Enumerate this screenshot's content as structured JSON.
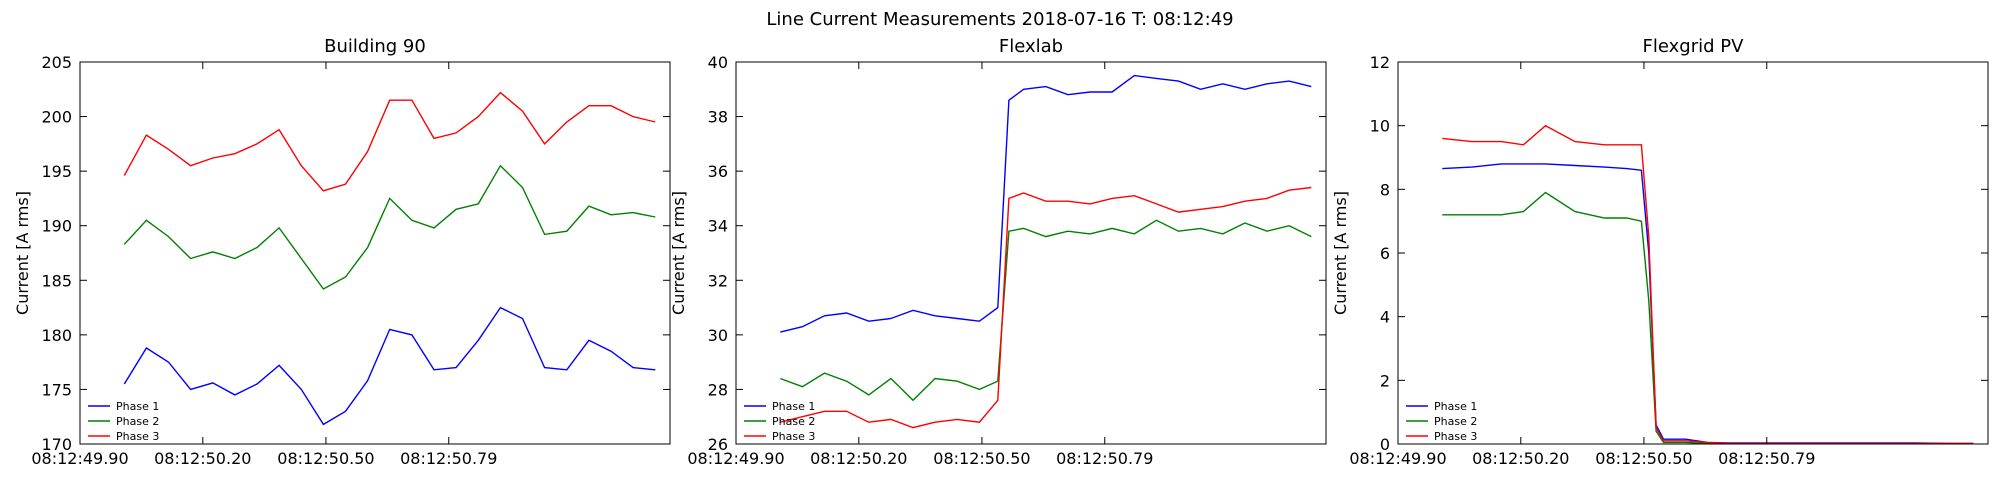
{
  "suptitle": "Line Current Measurements 2018-07-16 T: 08:12:49",
  "colors": {
    "phase1": "#0000ff",
    "phase2": "#008000",
    "phase3": "#ff0000"
  },
  "chart_data": [
    {
      "type": "line",
      "title": "Building 90",
      "xlabel": "",
      "ylabel": "Current [A rms]",
      "xlim": [
        0,
        1.6
      ],
      "ylim": [
        170,
        205
      ],
      "yticks": [
        170,
        175,
        180,
        185,
        190,
        195,
        200,
        205
      ],
      "xtick_positions": [
        0.0,
        0.333,
        0.667,
        1.0
      ],
      "xtick_labels": [
        "08:12:49.90",
        "08:12:50.20",
        "08:12:50.50",
        "08:12:50.79"
      ],
      "grid": false,
      "legend": "lower-left",
      "x": [
        0.12,
        0.18,
        0.24,
        0.3,
        0.36,
        0.42,
        0.48,
        0.54,
        0.6,
        0.66,
        0.72,
        0.78,
        0.84,
        0.9,
        0.96,
        1.02,
        1.08,
        1.14,
        1.2,
        1.26,
        1.32,
        1.38,
        1.44,
        1.5,
        1.56
      ],
      "series": [
        {
          "name": "Phase 1",
          "color": "phase1",
          "values": [
            175.5,
            178.8,
            177.5,
            175.0,
            175.6,
            174.5,
            175.5,
            177.2,
            175.0,
            171.8,
            173.0,
            175.8,
            180.5,
            180.0,
            176.8,
            177.0,
            179.5,
            182.5,
            181.5,
            177.0,
            176.8,
            179.5,
            178.5,
            177.0,
            176.8
          ]
        },
        {
          "name": "Phase 2",
          "color": "phase2",
          "values": [
            188.3,
            190.5,
            189.0,
            187.0,
            187.6,
            187.0,
            188.0,
            189.8,
            187.0,
            184.2,
            185.3,
            188.0,
            192.5,
            190.5,
            189.8,
            191.5,
            192.0,
            195.5,
            193.5,
            189.2,
            189.5,
            191.8,
            191.0,
            191.2,
            190.8
          ]
        },
        {
          "name": "Phase 3",
          "color": "phase3",
          "values": [
            194.6,
            198.3,
            197.0,
            195.5,
            196.2,
            196.6,
            197.5,
            198.8,
            195.5,
            193.2,
            193.8,
            196.8,
            201.5,
            201.5,
            198.0,
            198.5,
            200.0,
            202.2,
            200.5,
            197.5,
            199.5,
            201.0,
            201.0,
            200.0,
            199.5
          ]
        }
      ]
    },
    {
      "type": "line",
      "title": "Flexlab",
      "xlabel": "",
      "ylabel": "Current [A rms]",
      "xlim": [
        0,
        1.6
      ],
      "ylim": [
        26,
        40
      ],
      "yticks": [
        26,
        28,
        30,
        32,
        34,
        36,
        38,
        40
      ],
      "xtick_positions": [
        0.0,
        0.333,
        0.667,
        1.0
      ],
      "xtick_labels": [
        "08:12:49.90",
        "08:12:50.20",
        "08:12:50.50",
        "08:12:50.79"
      ],
      "grid": false,
      "legend": "lower-left",
      "x": [
        0.12,
        0.18,
        0.24,
        0.3,
        0.36,
        0.42,
        0.48,
        0.54,
        0.6,
        0.66,
        0.71,
        0.74,
        0.78,
        0.84,
        0.9,
        0.96,
        1.02,
        1.08,
        1.14,
        1.2,
        1.26,
        1.32,
        1.38,
        1.44,
        1.5,
        1.56
      ],
      "series": [
        {
          "name": "Phase 1",
          "color": "phase1",
          "values": [
            30.1,
            30.3,
            30.7,
            30.8,
            30.5,
            30.6,
            30.9,
            30.7,
            30.6,
            30.5,
            31.0,
            38.6,
            39.0,
            39.1,
            38.8,
            38.9,
            38.9,
            39.5,
            39.4,
            39.3,
            39.0,
            39.2,
            39.0,
            39.2,
            39.3,
            39.1
          ]
        },
        {
          "name": "Phase 2",
          "color": "phase2",
          "values": [
            28.4,
            28.1,
            28.6,
            28.3,
            27.8,
            28.4,
            27.6,
            28.4,
            28.3,
            28.0,
            28.3,
            33.8,
            33.9,
            33.6,
            33.8,
            33.7,
            33.9,
            33.7,
            34.2,
            33.8,
            33.9,
            33.7,
            34.1,
            33.8,
            34.0,
            33.6
          ]
        },
        {
          "name": "Phase 3",
          "color": "phase3",
          "values": [
            26.8,
            27.0,
            27.2,
            27.2,
            26.8,
            26.9,
            26.6,
            26.8,
            26.9,
            26.8,
            27.6,
            35.0,
            35.2,
            34.9,
            34.9,
            34.8,
            35.0,
            35.1,
            34.8,
            34.5,
            34.6,
            34.7,
            34.9,
            35.0,
            35.3,
            35.4
          ]
        }
      ]
    },
    {
      "type": "line",
      "title": "Flexgrid PV",
      "xlabel": "",
      "ylabel": "Current [A rms]",
      "xlim": [
        0,
        1.6
      ],
      "ylim": [
        0,
        12
      ],
      "yticks": [
        0,
        2,
        4,
        6,
        8,
        10,
        12
      ],
      "xtick_positions": [
        0.0,
        0.333,
        0.667,
        1.0
      ],
      "xtick_labels": [
        "08:12:49.90",
        "08:12:50.20",
        "08:12:50.50",
        "08:12:50.79"
      ],
      "grid": false,
      "legend": "lower-left",
      "x": [
        0.12,
        0.2,
        0.28,
        0.34,
        0.4,
        0.48,
        0.56,
        0.62,
        0.66,
        0.68,
        0.7,
        0.72,
        0.74,
        0.78,
        0.84,
        0.9,
        1.0,
        1.1,
        1.2,
        1.3,
        1.4,
        1.5,
        1.56
      ],
      "series": [
        {
          "name": "Phase 1",
          "color": "phase1",
          "values": [
            8.65,
            8.7,
            8.8,
            8.8,
            8.8,
            8.75,
            8.7,
            8.65,
            8.6,
            6.0,
            0.6,
            0.15,
            0.15,
            0.15,
            0.05,
            0.03,
            0.03,
            0.03,
            0.03,
            0.03,
            0.03,
            0.02,
            0.02
          ]
        },
        {
          "name": "Phase 2",
          "color": "phase2",
          "values": [
            7.2,
            7.2,
            7.2,
            7.3,
            7.9,
            7.3,
            7.1,
            7.1,
            7.0,
            4.5,
            0.4,
            0.05,
            0.05,
            0.05,
            0.02,
            0.01,
            0.01,
            0.01,
            0.01,
            0.01,
            0.01,
            0.01,
            0.01
          ]
        },
        {
          "name": "Phase 3",
          "color": "phase3",
          "values": [
            9.6,
            9.5,
            9.5,
            9.4,
            10.0,
            9.5,
            9.4,
            9.4,
            9.4,
            6.5,
            0.5,
            0.1,
            0.1,
            0.1,
            0.05,
            0.02,
            0.02,
            0.02,
            0.02,
            0.02,
            0.02,
            0.02,
            0.02
          ]
        }
      ]
    }
  ]
}
